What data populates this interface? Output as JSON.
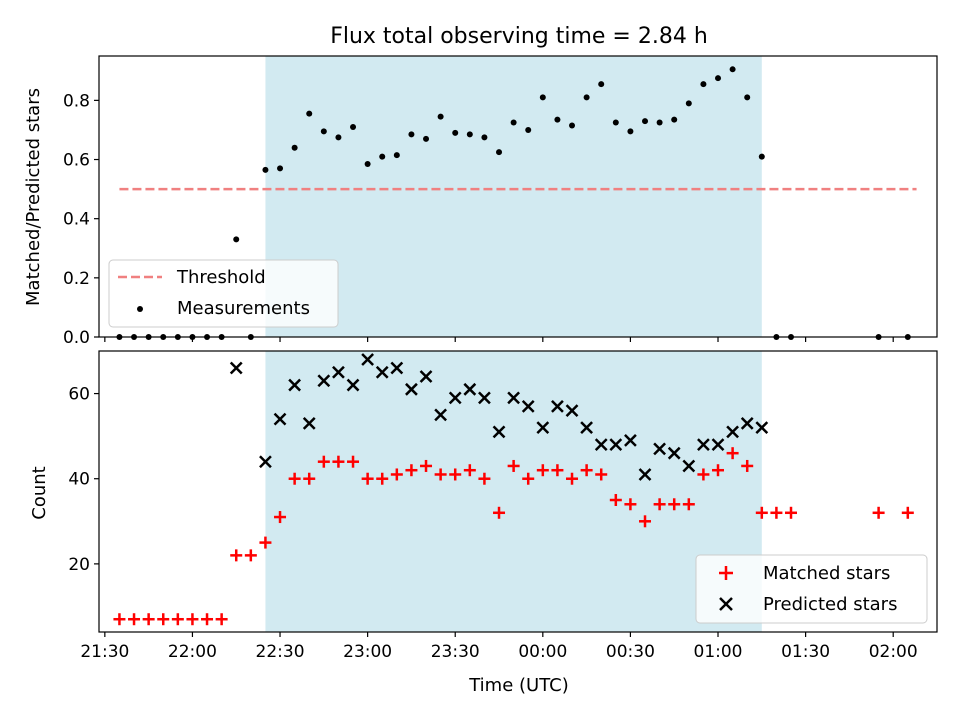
{
  "title": "Flux total observing time = 2.84 h",
  "colors": {
    "shade": "#add8e6",
    "threshold": "#f08080",
    "measure": "#000000",
    "matched": "#ff0000",
    "predicted": "#000000"
  },
  "chart_data": [
    {
      "type": "scatter",
      "title": "Flux total observing time = 2.84 h",
      "xlabel": "",
      "ylabel": "Matched/Predicted stars",
      "ylim": [
        0,
        0.95
      ],
      "yticks": [
        0.0,
        0.2,
        0.4,
        0.6,
        0.8
      ],
      "ytick_labels": [
        "0.0",
        "0.2",
        "0.4",
        "0.6",
        "0.8"
      ],
      "grid": false,
      "legend_position": "lower-left",
      "shaded_interval": [
        "22:25",
        "01:15"
      ],
      "threshold": {
        "name": "Threshold",
        "y": 0.5,
        "x_range": [
          "21:35",
          "02:08"
        ]
      },
      "series": [
        {
          "name": "Measurements",
          "marker": "dot",
          "x": [
            "21:35",
            "21:40",
            "21:45",
            "21:50",
            "21:55",
            "22:00",
            "22:05",
            "22:10",
            "22:15",
            "22:20",
            "22:25",
            "22:30",
            "22:35",
            "22:40",
            "22:45",
            "22:50",
            "22:55",
            "23:00",
            "23:05",
            "23:10",
            "23:15",
            "23:20",
            "23:25",
            "23:30",
            "23:35",
            "23:40",
            "23:45",
            "23:50",
            "23:55",
            "00:00",
            "00:05",
            "00:10",
            "00:15",
            "00:20",
            "00:25",
            "00:30",
            "00:35",
            "00:40",
            "00:45",
            "00:50",
            "00:55",
            "01:00",
            "01:05",
            "01:10",
            "01:15",
            "01:20",
            "01:25",
            "01:55",
            "02:05"
          ],
          "y": [
            0.0,
            0.0,
            0.0,
            0.0,
            0.0,
            0.0,
            0.0,
            0.0,
            0.33,
            0.0,
            0.565,
            0.57,
            0.64,
            0.755,
            0.695,
            0.675,
            0.71,
            0.585,
            0.61,
            0.615,
            0.685,
            0.67,
            0.745,
            0.69,
            0.685,
            0.675,
            0.625,
            0.725,
            0.7,
            0.81,
            0.735,
            0.715,
            0.81,
            0.855,
            0.725,
            0.695,
            0.73,
            0.725,
            0.735,
            0.79,
            0.855,
            0.875,
            0.905,
            0.81,
            0.61,
            0.0,
            0.0,
            0.0,
            0.0
          ]
        }
      ]
    },
    {
      "type": "scatter",
      "xlabel": "Time (UTC)",
      "ylabel": "Count",
      "ylim": [
        4,
        70
      ],
      "yticks": [
        20,
        40,
        60
      ],
      "ytick_labels": [
        "20",
        "40",
        "60"
      ],
      "xlim": [
        "21:28",
        "02:15"
      ],
      "xticks": [
        "21:30",
        "22:00",
        "22:30",
        "23:00",
        "23:30",
        "00:00",
        "00:30",
        "01:00",
        "01:30",
        "02:00"
      ],
      "grid": false,
      "legend_position": "lower-right",
      "shaded_interval": [
        "22:25",
        "01:15"
      ],
      "series": [
        {
          "name": "Matched stars",
          "marker": "+",
          "x": [
            "21:35",
            "21:40",
            "21:45",
            "21:50",
            "21:55",
            "22:00",
            "22:05",
            "22:10",
            "22:15",
            "22:20",
            "22:25",
            "22:30",
            "22:35",
            "22:40",
            "22:45",
            "22:50",
            "22:55",
            "23:00",
            "23:05",
            "23:10",
            "23:15",
            "23:20",
            "23:25",
            "23:30",
            "23:35",
            "23:40",
            "23:45",
            "23:50",
            "23:55",
            "00:00",
            "00:05",
            "00:10",
            "00:15",
            "00:20",
            "00:25",
            "00:30",
            "00:35",
            "00:40",
            "00:45",
            "00:50",
            "00:55",
            "01:00",
            "01:05",
            "01:10",
            "01:15",
            "01:20",
            "01:25",
            "01:55",
            "02:05"
          ],
          "y": [
            7,
            7,
            7,
            7,
            7,
            7,
            7,
            7,
            22,
            22,
            25,
            31,
            40,
            40,
            44,
            44,
            44,
            40,
            40,
            41,
            42,
            43,
            41,
            41,
            42,
            40,
            32,
            43,
            40,
            42,
            42,
            40,
            42,
            41,
            35,
            34,
            30,
            34,
            34,
            34,
            41,
            42,
            46,
            43,
            32,
            32,
            32,
            32,
            32
          ]
        },
        {
          "name": "Predicted stars",
          "marker": "x",
          "x": [
            "22:15",
            "22:25",
            "22:30",
            "22:35",
            "22:40",
            "22:45",
            "22:50",
            "22:55",
            "23:00",
            "23:05",
            "23:10",
            "23:15",
            "23:20",
            "23:25",
            "23:30",
            "23:35",
            "23:40",
            "23:45",
            "23:50",
            "23:55",
            "00:00",
            "00:05",
            "00:10",
            "00:15",
            "00:20",
            "00:25",
            "00:30",
            "00:35",
            "00:40",
            "00:45",
            "00:50",
            "00:55",
            "01:00",
            "01:05",
            "01:10",
            "01:15"
          ],
          "y": [
            66,
            44,
            54,
            62,
            53,
            63,
            65,
            62,
            68,
            65,
            66,
            61,
            64,
            55,
            59,
            61,
            59,
            51,
            59,
            57,
            52,
            57,
            56,
            52,
            48,
            48,
            49,
            41,
            47,
            46,
            43,
            48,
            48,
            51,
            53,
            52
          ]
        }
      ]
    }
  ]
}
